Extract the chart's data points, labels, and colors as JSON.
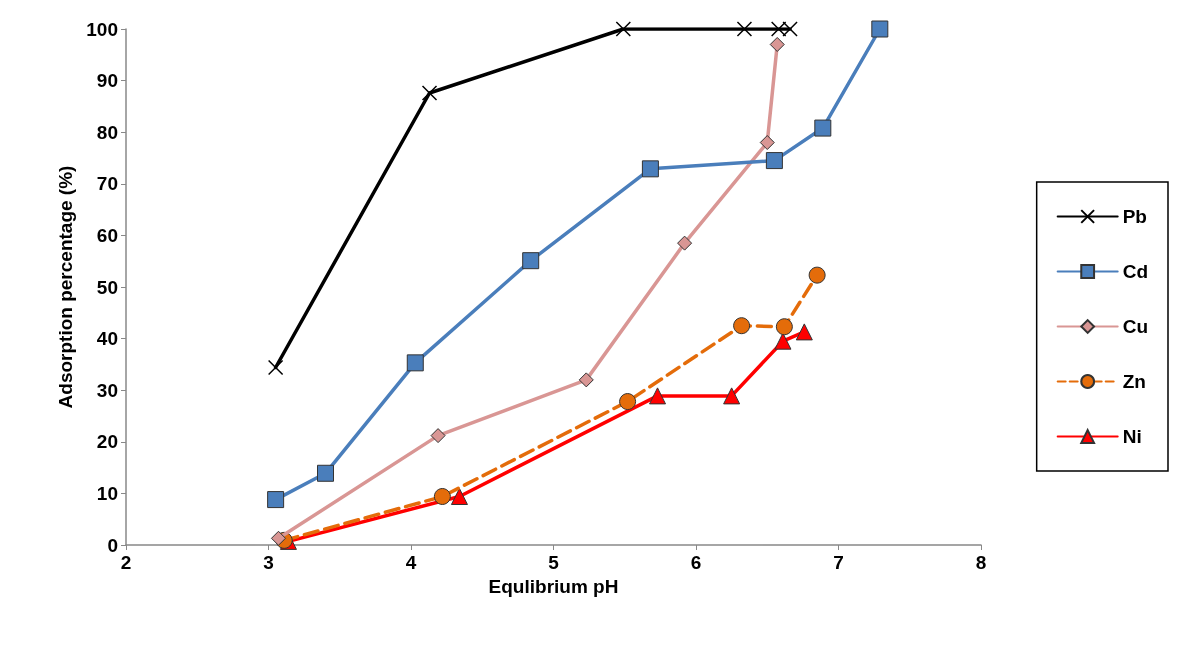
{
  "chart_data": {
    "type": "line",
    "xlabel": "Equlibrium pH",
    "ylabel": "Adsorption percentage (%)",
    "xlim": [
      2,
      8
    ],
    "xticks": [
      2,
      3,
      4,
      5,
      6,
      7,
      8
    ],
    "ylim": [
      0,
      100
    ],
    "yticks": [
      0,
      10,
      20,
      30,
      40,
      50,
      60,
      70,
      80,
      90,
      100
    ],
    "grid": false,
    "legend": "right",
    "series": [
      {
        "name": "Pb",
        "color": "#000000",
        "marker": "cross",
        "line_style": "solid",
        "x": [
          3.05,
          4.13,
          5.49,
          6.34,
          6.58,
          6.66
        ],
        "values": [
          34.4,
          87.6,
          100,
          100,
          100,
          100
        ]
      },
      {
        "name": "Cd",
        "color": "#4a7ebb",
        "marker": "square",
        "line_style": "solid",
        "x": [
          3.05,
          3.4,
          4.03,
          4.84,
          5.68,
          6.55,
          6.89,
          7.29
        ],
        "values": [
          8.8,
          13.9,
          35.3,
          55.1,
          72.9,
          74.5,
          80.8,
          100
        ]
      },
      {
        "name": "Cu",
        "color": "#d99694",
        "marker": "diamond",
        "line_style": "solid",
        "x": [
          3.07,
          4.19,
          5.23,
          5.92,
          6.5,
          6.57
        ],
        "values": [
          1.3,
          21.2,
          32,
          58.5,
          78,
          97
        ]
      },
      {
        "name": "Zn",
        "color": "#e46c0a",
        "marker": "circle",
        "line_style": "dashed",
        "x": [
          3.11,
          4.22,
          5.52,
          6.32,
          6.62,
          6.85
        ],
        "values": [
          0.9,
          9.4,
          27.8,
          42.5,
          42.3,
          52.3
        ]
      },
      {
        "name": "Ni",
        "color": "#ff0000",
        "marker": "triangle",
        "line_style": "solid",
        "x": [
          3.14,
          4.34,
          5.73,
          6.25,
          6.61,
          6.76
        ],
        "values": [
          0.7,
          9.4,
          28.9,
          28.9,
          39.5,
          41.3
        ]
      }
    ]
  }
}
